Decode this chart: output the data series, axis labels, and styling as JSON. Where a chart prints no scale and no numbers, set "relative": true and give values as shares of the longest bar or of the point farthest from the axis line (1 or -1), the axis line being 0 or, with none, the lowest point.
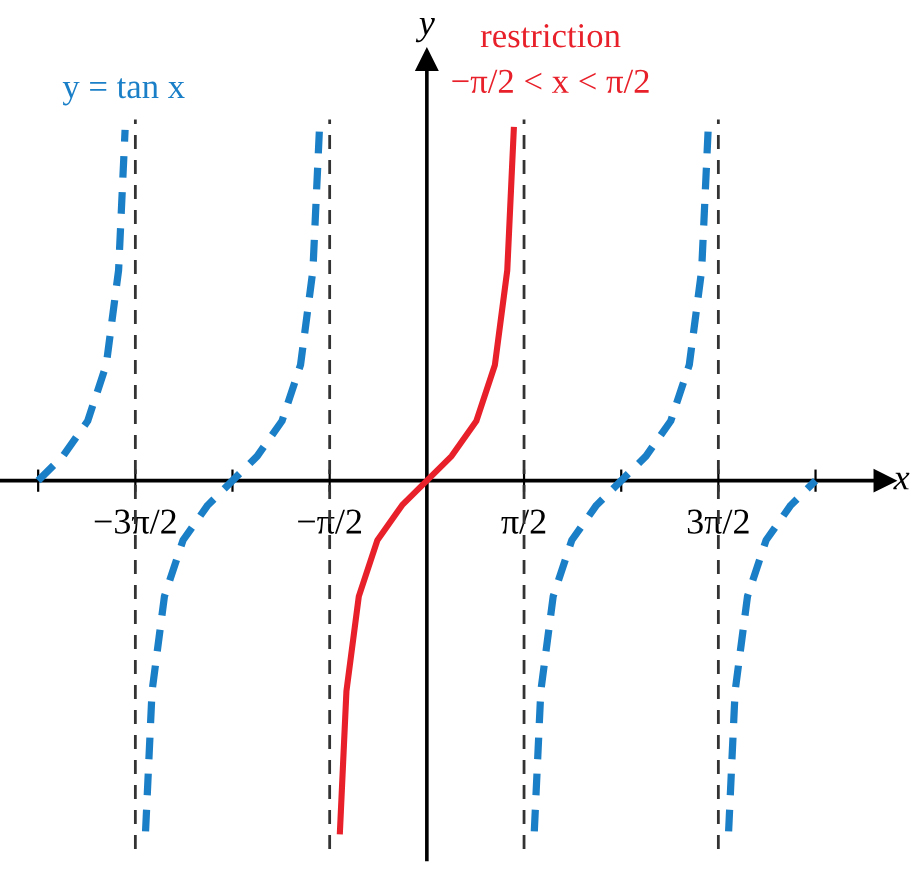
{
  "chart_data": {
    "type": "line",
    "relative": true,
    "xlabel": "x",
    "ylabel": "y",
    "legend": false,
    "grid": false,
    "tick_labels": "x",
    "xlim": [
      -6.9,
      7.4
    ],
    "xticks": [
      {
        "value": -6.283,
        "label": null
      },
      {
        "value": -4.712,
        "label": "−3π/2"
      },
      {
        "value": -3.142,
        "label": null
      },
      {
        "value": -1.571,
        "label": "−π/2"
      },
      {
        "value": 1.571,
        "label": "π/2"
      },
      {
        "value": 3.142,
        "label": null
      },
      {
        "value": 4.712,
        "label": "3π/2"
      },
      {
        "value": 6.283,
        "label": null
      }
    ],
    "series": [
      {
        "name": "y = tan x",
        "color": "#1a7fc7",
        "line_style": "dashed",
        "x": [
          -6.283,
          -5.883,
          -5.483,
          -5.183,
          -4.983,
          -4.878,
          -4.7,
          -4.547,
          -4.442,
          -4.242,
          -3.942,
          -3.542,
          -3.142,
          -2.742,
          -2.342,
          -2.042,
          -1.842,
          -1.737,
          0,
          1.737,
          1.842,
          2.042,
          2.342,
          2.742,
          3.142,
          3.542,
          3.942,
          4.242,
          4.442,
          4.547,
          4.7,
          4.878,
          4.983,
          5.183,
          5.483,
          5.883,
          6.283
        ],
        "values": [
          0,
          0.07,
          0.17,
          0.33,
          0.6,
          1,
          null,
          -1,
          -0.6,
          -0.33,
          -0.17,
          -0.07,
          0,
          0.07,
          0.17,
          0.33,
          0.6,
          1,
          null,
          -1,
          -0.6,
          -0.33,
          -0.17,
          -0.07,
          0,
          0.07,
          0.17,
          0.33,
          0.6,
          1,
          null,
          -1,
          -0.6,
          -0.33,
          -0.17,
          -0.07,
          0
        ]
      },
      {
        "name": "restriction",
        "color": "#e8202a",
        "line_style": "solid",
        "x": [
          -1.405,
          -1.3,
          -1.1,
          -0.8,
          -0.4,
          0,
          0.4,
          0.8,
          1.1,
          1.3,
          1.405
        ],
        "values": [
          -1,
          -0.6,
          -0.33,
          -0.17,
          -0.07,
          0,
          0.07,
          0.17,
          0.33,
          0.6,
          1
        ]
      }
    ],
    "annotations": [
      "−π/2 < x < π/2"
    ],
    "ref_lines": [
      {
        "axis": "x",
        "value": -4.712,
        "label": null,
        "color": "#333333",
        "line_style": "dashed"
      },
      {
        "axis": "x",
        "value": -1.571,
        "label": null,
        "color": "#333333",
        "line_style": "dashed"
      },
      {
        "axis": "x",
        "value": 1.571,
        "label": null,
        "color": "#333333",
        "line_style": "dashed"
      },
      {
        "axis": "x",
        "value": 4.712,
        "label": null,
        "color": "#333333",
        "line_style": "dashed"
      }
    ]
  }
}
